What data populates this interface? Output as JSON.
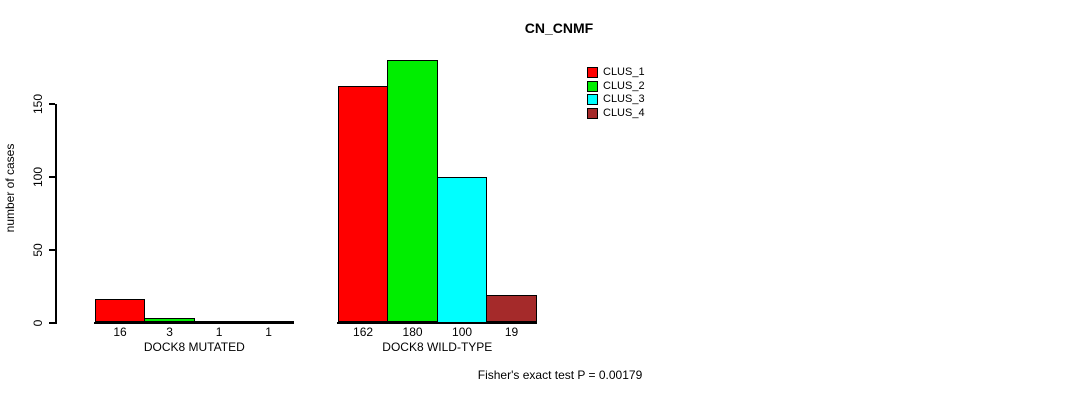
{
  "page": {
    "background_color": "#ffffff",
    "text_color": "#000000"
  },
  "chart_data": {
    "type": "bar",
    "title": "CN_CNMF",
    "xlabel": "",
    "ylabel": "number of cases",
    "yticks": [
      0,
      50,
      100,
      150
    ],
    "ylim": [
      0,
      180
    ],
    "grid": false,
    "legend_position": "top-right",
    "categories": [
      "DOCK8 MUTATED",
      "DOCK8 WILD-TYPE"
    ],
    "series": [
      {
        "name": "CLUS_1",
        "color": "#FF0000",
        "values": [
          16,
          162
        ]
      },
      {
        "name": "CLUS_2",
        "color": "#00EE00",
        "values": [
          3,
          180
        ]
      },
      {
        "name": "CLUS_3",
        "color": "#00FFFF",
        "values": [
          1,
          100
        ]
      },
      {
        "name": "CLUS_4",
        "color": "#A52A2A",
        "values": [
          1,
          19
        ]
      }
    ],
    "bar_value_labels": [
      [
        16,
        3,
        1,
        1
      ],
      [
        162,
        180,
        100,
        19
      ]
    ],
    "annotation": "Fisher's exact test P = 0.00179"
  }
}
